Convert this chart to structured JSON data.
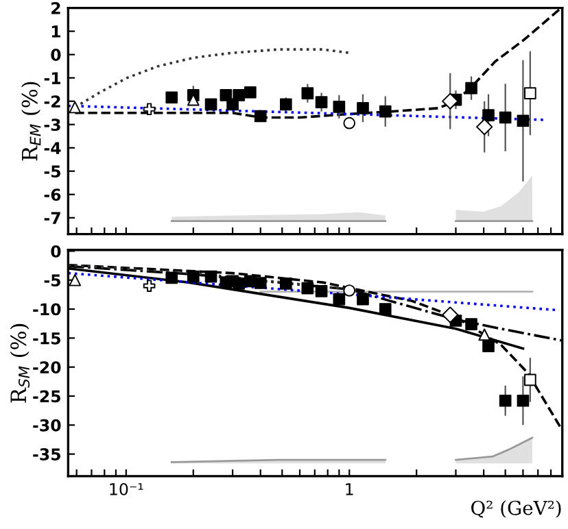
{
  "chart_data": [
    {
      "type": "scatter",
      "ylabel": "R$_{EM}$ (%)",
      "tick_labels": "y",
      "xlim": [
        0.055,
        9
      ],
      "ylim": [
        -7.7,
        2
      ],
      "xticks": [
        {
          "value": 0.06,
          "label": null
        },
        {
          "value": 0.07,
          "label": null
        },
        {
          "value": 0.08,
          "label": null
        },
        {
          "value": 0.09,
          "label": null
        },
        {
          "value": 0.1,
          "label": null
        },
        {
          "value": 0.2,
          "label": null
        },
        {
          "value": 0.3,
          "label": null
        },
        {
          "value": 0.4,
          "label": null
        },
        {
          "value": 0.5,
          "label": null
        },
        {
          "value": 0.6,
          "label": null
        },
        {
          "value": 0.7,
          "label": null
        },
        {
          "value": 0.8,
          "label": null
        },
        {
          "value": 0.9,
          "label": null
        },
        {
          "value": 1,
          "label": null
        },
        {
          "value": 2,
          "label": null
        },
        {
          "value": 3,
          "label": null
        },
        {
          "value": 4,
          "label": null
        },
        {
          "value": 5,
          "label": null
        },
        {
          "value": 6,
          "label": null
        },
        {
          "value": 7,
          "label": null
        },
        {
          "value": 8,
          "label": null
        },
        {
          "value": 9,
          "label": null
        }
      ],
      "yticks": [
        -7,
        -6,
        -5,
        -4,
        -3,
        -2,
        -1,
        0,
        1,
        2
      ],
      "log": "x",
      "series": [
        {
          "type": "line",
          "line_style": "solid",
          "color": "#999999",
          "x": [
            0.16,
            0.3,
            0.76,
            1.1,
            1.45
          ],
          "values": [
            -7.14,
            -7.14,
            -7.14,
            -7.14,
            -7.14
          ],
          "lower": [
            -7.14,
            -7.14,
            -7.14,
            -7.14,
            -7.14
          ],
          "upper": [
            -6.96,
            -6.9,
            -6.84,
            -6.76,
            -6.9
          ]
        },
        {
          "type": "line",
          "line_style": "solid",
          "color": "#999999",
          "x": [
            3.0,
            3.98,
            4.79,
            5.75,
            6.6
          ],
          "values": [
            -7.14,
            -7.14,
            -7.14,
            -7.14,
            -7.14
          ],
          "lower": [
            -7.14,
            -7.14,
            -7.14,
            -7.14,
            -7.14
          ],
          "upper": [
            -6.66,
            -6.74,
            -6.5,
            -5.9,
            -5.2
          ]
        },
        {
          "type": "line",
          "color": "#333333",
          "line_style": "dotted",
          "x": [
            0.059,
            0.077,
            0.101,
            0.139,
            0.2,
            0.29,
            0.48,
            0.76,
            0.99
          ],
          "values": [
            -2.26,
            -1.6,
            -1.0,
            -0.5,
            -0.14,
            0.06,
            0.22,
            0.22,
            0.08
          ]
        },
        {
          "type": "line",
          "color": "#000000",
          "line_style": "dashed",
          "x": [
            0.059,
            0.3,
            0.4,
            0.6,
            1.0,
            1.5,
            2.5,
            3.0,
            3.6,
            4.5,
            6.0,
            8.9
          ],
          "values": [
            -2.5,
            -2.5,
            -2.7,
            -2.7,
            -2.55,
            -2.45,
            -2.3,
            -2.0,
            -1.3,
            -0.3,
            0.6,
            2.0
          ]
        },
        {
          "type": "line",
          "color": "#0000ff",
          "line_style": "dotted",
          "x": [
            0.055,
            1.0,
            7.4
          ],
          "values": [
            -2.2,
            -2.55,
            -2.8
          ]
        },
        {
          "marker": "square",
          "color": "#000000",
          "x": [
            0.16,
            0.2,
            0.24,
            0.28,
            0.3,
            0.32,
            0.36,
            0.4,
            0.52,
            0.65,
            0.75,
            0.9,
            1.15,
            1.45,
            3.0,
            3.52,
            4.2,
            5.0,
            6.0
          ],
          "values": [
            -1.84,
            -1.74,
            -2.14,
            -1.74,
            -2.14,
            -1.74,
            -1.62,
            -2.64,
            -2.14,
            -1.66,
            -2.04,
            -2.24,
            -2.3,
            -2.44,
            -1.94,
            -1.44,
            -2.6,
            -2.7,
            -2.84
          ],
          "errors": [
            0.2,
            0.4,
            0.2,
            0.2,
            0.2,
            0.2,
            0.2,
            0.2,
            0.3,
            0.4,
            0.4,
            0.5,
            0.6,
            0.65,
            0.4,
            0.5,
            0.9,
            1.45,
            2.6
          ]
        },
        {
          "type": "scatter",
          "marker": "triangle",
          "color": "#ffffff",
          "x": [
            0.059,
            0.2
          ],
          "values": [
            -2.26,
            -1.94
          ]
        },
        {
          "type": "scatter",
          "marker": "cross",
          "color": "#ffffff",
          "x": [
            0.127
          ],
          "values": [
            -2.34
          ]
        },
        {
          "type": "scatter",
          "marker": "circle",
          "color": "#ffffff",
          "x": [
            1.0
          ],
          "values": [
            -2.94
          ]
        },
        {
          "type": "scatter",
          "marker": "diamond",
          "color": "#ffffff",
          "x": [
            2.83,
            4.03
          ],
          "values": [
            -2.0,
            -3.1
          ],
          "errors": [
            1.2,
            1.1
          ]
        },
        {
          "type": "scatter",
          "marker": "square",
          "color": "#ffffff",
          "x": [
            6.46
          ],
          "values": [
            -1.66
          ],
          "errors": [
            1.8
          ]
        }
      ]
    },
    {
      "type": "scatter",
      "ylabel": "R$_{SM}$ (%)",
      "xlabel": "Q² (GeV²)",
      "xlim": [
        0.055,
        9
      ],
      "ylim": [
        -38.8,
        0.2
      ],
      "xticks": [
        {
          "value": 0.06,
          "label": null
        },
        {
          "value": 0.07,
          "label": null
        },
        {
          "value": 0.08,
          "label": null
        },
        {
          "value": 0.09,
          "label": null
        },
        {
          "value": 0.1,
          "label": "10⁻¹"
        },
        {
          "value": 0.2,
          "label": null
        },
        {
          "value": 0.3,
          "label": null
        },
        {
          "value": 0.4,
          "label": null
        },
        {
          "value": 0.5,
          "label": null
        },
        {
          "value": 0.6,
          "label": null
        },
        {
          "value": 0.7,
          "label": null
        },
        {
          "value": 0.8,
          "label": null
        },
        {
          "value": 0.9,
          "label": null
        },
        1,
        {
          "value": 2,
          "label": null
        },
        {
          "value": 3,
          "label": null
        },
        {
          "value": 4,
          "label": null
        },
        {
          "value": 5,
          "label": null
        },
        {
          "value": 6,
          "label": null
        },
        {
          "value": 7,
          "label": null
        },
        {
          "value": 8,
          "label": null
        },
        {
          "value": 9,
          "label": null
        }
      ],
      "yticks": [
        -35,
        -30,
        -25,
        -20,
        -15,
        -10,
        -5,
        0
      ],
      "log": "x",
      "series": [
        {
          "type": "line",
          "line_style": "solid",
          "color": "#999999",
          "x": [
            0.16,
            0.48,
            1.45
          ],
          "values": [
            -36.4,
            -36.0,
            -36.0
          ],
          "lower": [
            -36.6,
            -36.6,
            -36.6
          ],
          "upper": [
            -36.4,
            -36.0,
            -36.0
          ]
        },
        {
          "type": "line",
          "line_style": "solid",
          "color": "#999999",
          "x": [
            3.0,
            4.4,
            5.2,
            6.6
          ],
          "values": [
            -36.0,
            -35.4,
            -34.2,
            -32.2
          ],
          "lower": [
            -36.6,
            -36.6,
            -36.6,
            -36.6
          ],
          "upper": [
            -36.0,
            -35.4,
            -34.2,
            -32.2
          ]
        },
        {
          "type": "line",
          "color": "#b3b3b3",
          "line_style": "solid",
          "x": [
            0.4,
            6.6
          ],
          "values": [
            -7.0,
            -7.0
          ]
        },
        {
          "type": "line",
          "color": "#000000",
          "line_style": "solid",
          "x": [
            0.055,
            0.19,
            1.0,
            3.0,
            6.0
          ],
          "values": [
            -3.0,
            -5.4,
            -9.8,
            -13.4,
            -16.8
          ]
        },
        {
          "type": "line",
          "color": "#000000",
          "line_style": "dashed",
          "x": [
            0.055,
            0.3,
            0.76,
            1.91,
            3.0,
            4.79,
            6.3,
            8.9
          ],
          "values": [
            -2.4,
            -3.8,
            -5.4,
            -8.6,
            -11.4,
            -16.2,
            -21.0,
            -30.6
          ]
        },
        {
          "type": "line",
          "color": "#000000",
          "line_style": "dashdot",
          "x": [
            0.055,
            0.2,
            1.0,
            3.0,
            4.79,
            8.9
          ],
          "values": [
            -2.6,
            -4.0,
            -6.6,
            -11.8,
            -13.4,
            -15.4
          ]
        },
        {
          "type": "line",
          "color": "#333333",
          "line_style": "dotted",
          "x": [
            0.055,
            0.2,
            1.0
          ],
          "values": [
            -2.4,
            -3.8,
            -6.6
          ]
        },
        {
          "type": "line",
          "color": "#0000ff",
          "line_style": "dotted",
          "x": [
            0.055,
            8.7
          ],
          "values": [
            -3.8,
            -10.2
          ]
        },
        {
          "marker": "square",
          "color": "#000000",
          "x": [
            0.16,
            0.2,
            0.24,
            0.28,
            0.3,
            0.32,
            0.36,
            0.4,
            0.52,
            0.65,
            0.75,
            0.9,
            1.15,
            1.45,
            3.0,
            3.52,
            4.2,
            5.0,
            6.0
          ],
          "values": [
            -4.6,
            -4.4,
            -4.4,
            -5.4,
            -5.2,
            -5.6,
            -5.2,
            -5.5,
            -5.6,
            -6.4,
            -6.9,
            -8.3,
            -8.3,
            -10.0,
            -12.0,
            -12.6,
            -16.4,
            -25.8,
            -25.8
          ],
          "errors": [
            0.3,
            0.5,
            0.3,
            0.3,
            0.3,
            0.3,
            0.3,
            0.3,
            0.3,
            0.3,
            0.3,
            0.5,
            0.5,
            0.5,
            0.5,
            0.5,
            1.0,
            2.6,
            4.2
          ]
        },
        {
          "type": "scatter",
          "marker": "triangle",
          "color": "#ffffff",
          "x": [
            0.059,
            4.03
          ],
          "values": [
            -5.0,
            -14.4
          ]
        },
        {
          "type": "scatter",
          "marker": "cross",
          "color": "#ffffff",
          "x": [
            0.127
          ],
          "values": [
            -6.0
          ]
        },
        {
          "type": "scatter",
          "marker": "circle",
          "color": "#ffffff",
          "x": [
            1.0
          ],
          "values": [
            -6.8
          ]
        },
        {
          "type": "scatter",
          "marker": "diamond",
          "color": "#ffffff",
          "x": [
            2.83
          ],
          "values": [
            -11.0
          ]
        },
        {
          "type": "scatter",
          "marker": "square",
          "color": "#ffffff",
          "x": [
            6.46
          ],
          "values": [
            -22.2
          ],
          "errors": [
            3.8
          ]
        }
      ]
    }
  ]
}
